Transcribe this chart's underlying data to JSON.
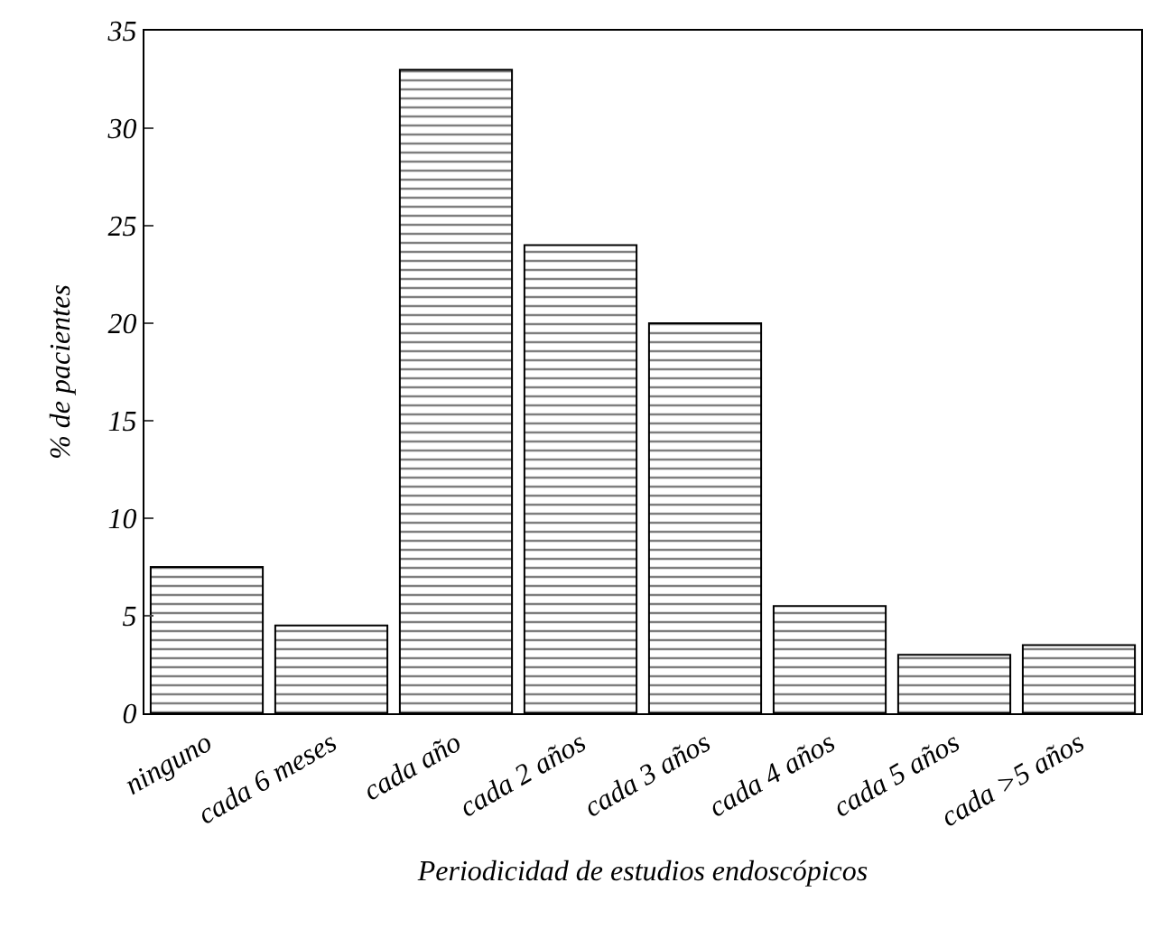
{
  "chart_data": {
    "type": "bar",
    "xlabel": "Periodicidad de estudios endoscópicos",
    "ylabel": "% de pacientes",
    "categories": [
      "ninguno",
      "cada 6 meses",
      "cada año",
      "cada 2 años",
      "cada 3 años",
      "cada 4 años",
      "cada 5 años",
      "cada >5 años"
    ],
    "values": [
      7.5,
      4.5,
      33,
      24,
      20,
      5.5,
      3,
      3.5
    ],
    "color": "#000000",
    "ylim": [
      0,
      35
    ],
    "yticks": [
      0,
      5,
      10,
      15,
      20,
      25,
      30,
      35
    ]
  }
}
